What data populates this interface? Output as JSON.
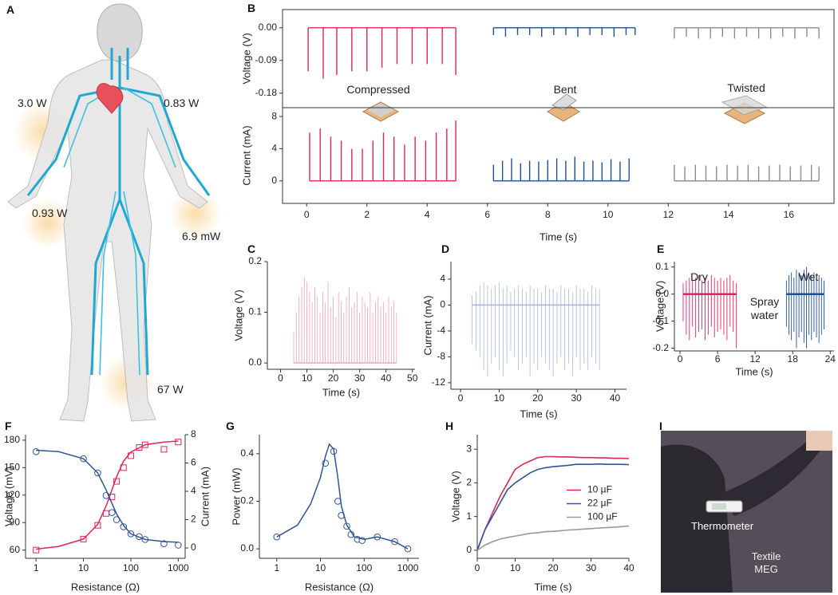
{
  "panel_labels": [
    "A",
    "B",
    "C",
    "D",
    "E",
    "F",
    "G",
    "H",
    "I"
  ],
  "body_figure": {
    "labels": [
      "3.0 W",
      "0.83 W",
      "0.93 W",
      "6.9 mW",
      "67 W"
    ]
  },
  "photo": {
    "labels": [
      "Thermometer",
      "Textile MEG"
    ]
  },
  "chart_data": [
    {
      "type": "spike",
      "ylabel": "Voltage (V)",
      "xlim": [
        -0.8,
        17.5
      ],
      "ylim": [
        -0.22,
        0.05
      ],
      "yticks": [
        {
          "value": 0,
          "label": "0.00"
        },
        -0.09,
        -0.18
      ],
      "annotations": [
        "Compressed",
        "Bent",
        "Twisted"
      ],
      "series": [
        {
          "color": "#e0245e",
          "x": [
            0.05,
            0.55,
            1.0,
            1.5,
            2.0,
            2.5,
            3.0,
            3.5,
            4.0,
            4.5,
            4.95
          ],
          "values": [
            -0.12,
            -0.14,
            -0.13,
            -0.12,
            -0.12,
            -0.11,
            -0.1,
            -0.1,
            -0.1,
            -0.1,
            -0.13
          ]
        },
        {
          "color": "#1f4e9c",
          "x": [
            6.2,
            6.6,
            7.0,
            7.4,
            7.8,
            8.2,
            8.6,
            9.0,
            9.4,
            9.8,
            10.2,
            10.6,
            10.9
          ],
          "values": [
            -0.02,
            -0.025,
            -0.02,
            -0.02,
            -0.025,
            -0.02,
            -0.02,
            -0.025,
            -0.02,
            -0.02,
            -0.025,
            -0.02,
            -0.02
          ]
        },
        {
          "color": "#8c8c8c",
          "x": [
            12.2,
            12.6,
            13.0,
            13.4,
            13.8,
            14.2,
            14.6,
            15.0,
            15.4,
            15.8,
            16.2,
            16.6,
            17.0
          ],
          "values": [
            -0.03,
            -0.025,
            -0.03,
            -0.03,
            -0.025,
            -0.03,
            -0.025,
            -0.03,
            -0.03,
            -0.025,
            -0.03,
            -0.025,
            -0.03
          ]
        }
      ]
    },
    {
      "type": "spike",
      "xlabel": "Time (s)",
      "ylabel": "Current (mA)",
      "xlim": [
        -0.8,
        17.5
      ],
      "ylim": [
        -2.8,
        9.1
      ],
      "xticks": [
        0,
        2,
        4,
        6,
        8,
        10,
        12,
        14,
        16
      ],
      "yticks": [
        0,
        4,
        8
      ],
      "series": [
        {
          "color": "#e0245e",
          "x": [
            0.1,
            0.45,
            0.8,
            1.15,
            1.5,
            1.85,
            2.2,
            2.55,
            2.9,
            3.25,
            3.6,
            3.95,
            4.3,
            4.65,
            4.95
          ],
          "values": [
            6,
            6.5,
            5.5,
            5,
            4,
            4,
            5,
            6,
            5.5,
            4.5,
            5.5,
            5,
            6,
            6.5,
            7.5
          ]
        },
        {
          "color": "#1f4e9c",
          "x": [
            6.2,
            6.5,
            6.8,
            7.1,
            7.4,
            7.7,
            8.0,
            8.3,
            8.6,
            8.9,
            9.2,
            9.5,
            9.8,
            10.1,
            10.4,
            10.7
          ],
          "values": [
            2,
            2.5,
            2.8,
            2.2,
            2.5,
            2.4,
            2.6,
            2.8,
            2.5,
            3.0,
            2.4,
            2.5,
            2.3,
            2.7,
            2.4,
            2.8
          ]
        },
        {
          "color": "#8c8c8c",
          "x": [
            12.2,
            12.55,
            12.9,
            13.25,
            13.6,
            13.95,
            14.3,
            14.65,
            15.0,
            15.35,
            15.7,
            16.05,
            16.4,
            16.75,
            17.0
          ],
          "values": [
            2,
            1.8,
            2,
            1.9,
            1.8,
            2,
            1.9,
            2,
            1.8,
            1.9,
            2,
            1.8,
            1.9,
            2,
            1.8
          ]
        }
      ]
    },
    {
      "type": "spike",
      "xlabel": "Time (s)",
      "ylabel": "Voltage (V)",
      "xlim": [
        -5,
        51
      ],
      "ylim": [
        -0.0125,
        0.2
      ],
      "xticks": [
        0,
        10,
        20,
        30,
        40,
        50
      ],
      "yticks": [
        {
          "value": 0,
          "label": "0.0"
        },
        0.1,
        0.2
      ],
      "series": [
        {
          "color": "#f0a0b8",
          "x": [
            5,
            6,
            7,
            8,
            9,
            10,
            11,
            12,
            13,
            14,
            15,
            16,
            17,
            18,
            19,
            20,
            21,
            22,
            23,
            24,
            25,
            26,
            27,
            28,
            29,
            30,
            31,
            32,
            33,
            34,
            35,
            36,
            37,
            38,
            39,
            40,
            41,
            42,
            43,
            44
          ],
          "values": [
            0.06,
            0.1,
            0.13,
            0.15,
            0.17,
            0.16,
            0.14,
            0.12,
            0.15,
            0.13,
            0.1,
            0.14,
            0.12,
            0.16,
            0.11,
            0.13,
            0.09,
            0.14,
            0.12,
            0.1,
            0.13,
            0.15,
            0.11,
            0.12,
            0.14,
            0.1,
            0.13,
            0.12,
            0.11,
            0.14,
            0.1,
            0.12,
            0.13,
            0.11,
            0.12,
            0.1,
            0.13,
            0.11,
            0.12,
            0.1
          ]
        }
      ]
    },
    {
      "type": "spike",
      "xlabel": "Time (s)",
      "ylabel": "Current (mA)",
      "xlim": [
        -2.5,
        43
      ],
      "ylim": [
        -13,
        6.7
      ],
      "xticks": [
        0,
        10,
        20,
        30,
        40
      ],
      "yticks": [
        4,
        0,
        -4,
        -8,
        -12
      ],
      "series": [
        {
          "color": "#a9b8d8",
          "x": [
            3,
            4,
            5,
            6,
            7,
            8,
            9,
            10,
            11,
            12,
            13,
            14,
            15,
            16,
            17,
            18,
            19,
            20,
            21,
            22,
            23,
            24,
            25,
            26,
            27,
            28,
            29,
            30,
            31,
            32,
            33,
            34,
            35,
            36
          ],
          "values": [
            -6,
            -7,
            -8,
            -10,
            -11,
            -9,
            -8,
            -10,
            -11,
            -9,
            -7,
            -8,
            -10,
            -9,
            -8,
            -11,
            -9,
            -10,
            -8,
            -9,
            -10,
            -11,
            -9,
            -8,
            -10,
            -9,
            -11,
            -8,
            -10,
            -9,
            -10,
            -8,
            -9,
            -10
          ]
        },
        {
          "color": "#a9b8d8",
          "x": [
            3,
            4,
            5,
            6,
            7,
            8,
            9,
            10,
            11,
            12,
            13,
            14,
            15,
            16,
            17,
            18,
            19,
            20,
            21,
            22,
            23,
            24,
            25,
            26,
            27,
            28,
            29,
            30,
            31,
            32,
            33,
            34,
            35,
            36
          ],
          "values": [
            1.5,
            2,
            3,
            3.5,
            3,
            2.5,
            3,
            3.5,
            2.5,
            3,
            2,
            2.5,
            3,
            2.5,
            2,
            3,
            2.5,
            2.5,
            2,
            3,
            2.5,
            2.5,
            2,
            3,
            2.5,
            2.5,
            2,
            3,
            2.5,
            2.5,
            2,
            3,
            2.5,
            2.5
          ]
        }
      ]
    },
    {
      "type": "spike",
      "xlabel": "Time (s)",
      "ylabel": "Voltage (V)",
      "xlim": [
        -0.9,
        24.6
      ],
      "ylim": [
        -0.21,
        0.12
      ],
      "xticks": [
        0,
        6,
        12,
        18,
        24
      ],
      "yticks": [
        0.1,
        {
          "value": 0,
          "label": "0.0"
        },
        -0.1,
        -0.2
      ],
      "annotations": [
        "Dry",
        "Wet",
        "Spray water"
      ],
      "series": [
        {
          "color": "#e0245e",
          "x": [
            0.5,
            1.0,
            1.5,
            2.0,
            2.5,
            3.0,
            3.5,
            4.0,
            4.5,
            5.0,
            5.5,
            6.0,
            6.5,
            7.0,
            7.5,
            8.0,
            8.5,
            9.0
          ],
          "values": [
            -0.1,
            -0.15,
            -0.17,
            -0.12,
            -0.16,
            -0.14,
            -0.13,
            -0.17,
            -0.15,
            -0.12,
            -0.16,
            -0.14,
            -0.13,
            -0.15,
            -0.17,
            -0.12,
            -0.14,
            -0.2
          ]
        },
        {
          "color": "#e0245e",
          "x": [
            0.5,
            1.0,
            1.5,
            2.0,
            2.5,
            3.0,
            3.5,
            4.0,
            4.5,
            5.0,
            5.5,
            6.0,
            6.5,
            7.0,
            7.5,
            8.0,
            8.5,
            9.0
          ],
          "values": [
            0.04,
            0.05,
            0.06,
            0.05,
            0.06,
            0.07,
            0.05,
            0.06,
            0.05,
            0.07,
            0.06,
            0.05,
            0.06,
            0.05,
            0.06,
            0.07,
            0.05,
            0.04
          ]
        },
        {
          "color": "#1f4e9c",
          "x": [
            17.0,
            17.4,
            17.8,
            18.2,
            18.6,
            19.0,
            19.4,
            19.8,
            20.2,
            20.6,
            21.0,
            21.4,
            21.8,
            22.2,
            22.6,
            23.0
          ],
          "values": [
            -0.12,
            -0.15,
            -0.17,
            -0.14,
            -0.2,
            -0.16,
            -0.14,
            -0.18,
            -0.2,
            -0.15,
            -0.17,
            -0.14,
            -0.16,
            -0.18,
            -0.15,
            -0.13
          ]
        },
        {
          "color": "#1f4e9c",
          "x": [
            17.0,
            17.4,
            17.8,
            18.2,
            18.6,
            19.0,
            19.4,
            19.8,
            20.2,
            20.6,
            21.0,
            21.4,
            21.8,
            22.2,
            22.6,
            23.0
          ],
          "values": [
            0.05,
            0.07,
            0.08,
            0.06,
            0.09,
            0.08,
            0.07,
            0.09,
            0.1,
            0.08,
            0.07,
            0.08,
            0.06,
            0.07,
            0.06,
            0.05
          ]
        }
      ]
    },
    {
      "type": "scatter",
      "xscale": "log",
      "xlabel": "Resistance (Ω)",
      "ylabel": "Voltage (mV)",
      "ylabel_color": "#e0245e",
      "y2label": "Current (mA)",
      "y2label_color": "#2f5597",
      "xlim": [
        0.6,
        1400
      ],
      "ylim": [
        51,
        186
      ],
      "y2lim": [
        -0.73,
        8
      ],
      "xticks": [
        1,
        10,
        100,
        1000
      ],
      "yticks": [
        60,
        90,
        120,
        150,
        180
      ],
      "y2ticks": [
        0,
        2,
        4,
        6,
        8
      ],
      "series": [
        {
          "type": "points",
          "marker": "square",
          "color": "#e0245e",
          "x": [
            1,
            10,
            20,
            30,
            40,
            50,
            70,
            100,
            150,
            200,
            500,
            1000
          ],
          "values": [
            60,
            72,
            87,
            100,
            118,
            135,
            150,
            163,
            172,
            175,
            170,
            178
          ]
        },
        {
          "type": "points",
          "marker": "circle",
          "color": "#2f5597",
          "axis": "y2",
          "x": [
            1,
            10,
            20,
            30,
            40,
            50,
            70,
            100,
            150,
            200,
            500,
            1000
          ],
          "values": [
            6.8,
            6.3,
            5.3,
            3.7,
            2.5,
            2.0,
            1.5,
            1.0,
            0.8,
            0.6,
            0.3,
            0.2
          ]
        },
        {
          "type": "line",
          "color": "#e0245e",
          "x": [
            1,
            3,
            10,
            20,
            30,
            50,
            70,
            100,
            200,
            500,
            1000
          ],
          "values": [
            61,
            64,
            72,
            88,
            108,
            140,
            157,
            167,
            175,
            178,
            179
          ]
        },
        {
          "type": "line",
          "color": "#2f5597",
          "axis": "y2",
          "x": [
            1,
            3,
            10,
            20,
            30,
            50,
            70,
            100,
            200,
            500,
            1000
          ],
          "values": [
            6.9,
            6.8,
            6.3,
            5.3,
            4.1,
            2.4,
            1.6,
            1.0,
            0.6,
            0.45,
            0.4
          ]
        }
      ]
    },
    {
      "type": "scatter",
      "xscale": "log",
      "xlabel": "Resistance (Ω)",
      "ylabel": "Power (mW)",
      "xlim": [
        0.4,
        1800
      ],
      "ylim": [
        -0.04,
        0.48
      ],
      "xticks": [
        1,
        10,
        100,
        1000
      ],
      "yticks": [
        {
          "value": 0,
          "label": "0.0"
        },
        0.2,
        0.4
      ],
      "series": [
        {
          "type": "points",
          "marker": "circle",
          "color": "#2f5597",
          "x": [
            1,
            13,
            20,
            25,
            30,
            40,
            50,
            70,
            90,
            200,
            500,
            1000
          ],
          "values": [
            0.05,
            0.36,
            0.41,
            0.2,
            0.14,
            0.095,
            0.06,
            0.04,
            0.035,
            0.05,
            0.03,
            0.0
          ]
        },
        {
          "type": "line",
          "color": "#2f5597",
          "x": [
            1,
            3,
            6,
            10,
            13,
            16,
            20,
            25,
            30,
            40,
            60,
            100,
            200,
            500,
            1000
          ],
          "values": [
            0.05,
            0.1,
            0.19,
            0.3,
            0.39,
            0.44,
            0.42,
            0.3,
            0.18,
            0.1,
            0.05,
            0.04,
            0.05,
            0.03,
            0.0
          ]
        }
      ]
    },
    {
      "type": "line",
      "xlabel": "Time (s)",
      "ylabel": "Voltage (V)",
      "legend": "right",
      "xlim": [
        0,
        40
      ],
      "ylim": [
        -0.24,
        3.43
      ],
      "xticks": [
        0,
        10,
        20,
        30,
        40
      ],
      "yticks": [
        0,
        1,
        2,
        3
      ],
      "x": [
        0,
        2,
        4,
        6,
        8,
        10,
        12,
        14,
        16,
        18,
        20,
        22,
        24,
        26,
        28,
        30,
        32,
        34,
        36,
        38,
        40
      ],
      "series": [
        {
          "name": "10 µF",
          "color": "#e0245e",
          "values": [
            0,
            0.6,
            1.1,
            1.6,
            2.0,
            2.4,
            2.55,
            2.65,
            2.75,
            2.78,
            2.78,
            2.77,
            2.77,
            2.76,
            2.75,
            2.75,
            2.74,
            2.74,
            2.73,
            2.73,
            2.72
          ]
        },
        {
          "name": "22 µF",
          "color": "#2f5597",
          "values": [
            0,
            0.6,
            1.0,
            1.4,
            1.8,
            2.0,
            2.15,
            2.3,
            2.4,
            2.45,
            2.48,
            2.5,
            2.52,
            2.55,
            2.55,
            2.55,
            2.56,
            2.55,
            2.55,
            2.55,
            2.54
          ]
        },
        {
          "name": "100 µF",
          "color": "#999999",
          "values": [
            0,
            0.15,
            0.25,
            0.33,
            0.38,
            0.42,
            0.46,
            0.5,
            0.52,
            0.55,
            0.56,
            0.58,
            0.6,
            0.61,
            0.63,
            0.64,
            0.66,
            0.67,
            0.68,
            0.7,
            0.72
          ]
        }
      ]
    }
  ]
}
